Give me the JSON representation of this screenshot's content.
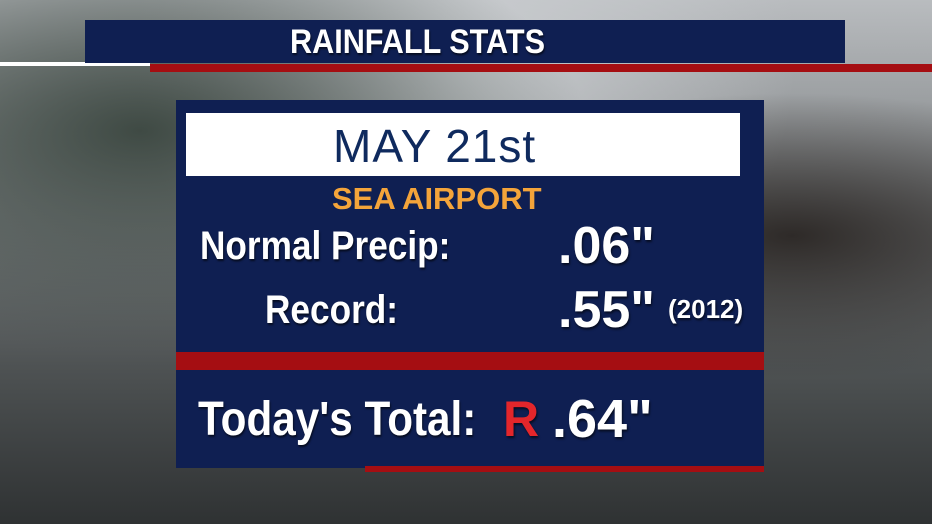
{
  "header": {
    "title": "RAINFALL STATS"
  },
  "panel": {
    "date": "MAY 21st",
    "location": "SEA AIRPORT",
    "rows": [
      {
        "label": "Normal Precip:",
        "value": ".06\""
      },
      {
        "label": "Record:",
        "value": ".55\"",
        "note": "(2012)"
      }
    ],
    "total": {
      "label": "Today's Total:",
      "flag": "R",
      "value": ".64\""
    }
  }
}
